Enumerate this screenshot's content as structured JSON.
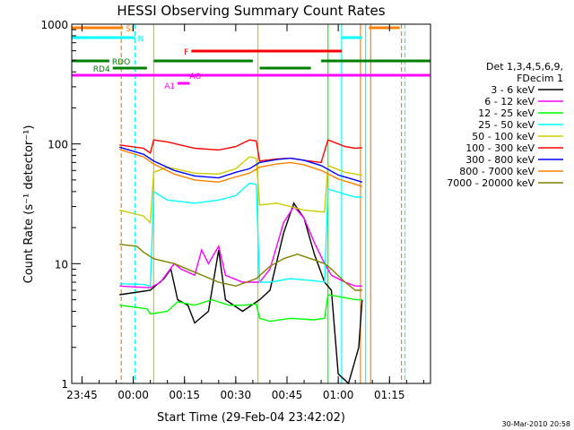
{
  "chart_data": {
    "type": "line",
    "title": "HESSI Observing Summary Count Rates",
    "xlabel": "Start Time (29-Feb-04 23:42:02)",
    "ylabel": "Count Rate (s⁻¹ detector⁻¹)",
    "ylog": true,
    "ylim": [
      1,
      1000
    ],
    "xlim_minutes": [
      -18,
      87
    ],
    "x_ticks": [
      {
        "t": -15,
        "label": "23:45"
      },
      {
        "t": 0,
        "label": "00:00"
      },
      {
        "t": 15,
        "label": "00:15"
      },
      {
        "t": 30,
        "label": "00:30"
      },
      {
        "t": 45,
        "label": "00:45"
      },
      {
        "t": 60,
        "label": "01:00"
      },
      {
        "t": 75,
        "label": "01:15"
      }
    ],
    "y_ticks": [
      {
        "v": 1,
        "label": "1"
      },
      {
        "v": 10,
        "label": "10"
      },
      {
        "v": 100,
        "label": "100"
      },
      {
        "v": 1000,
        "label": "1000"
      }
    ],
    "legend_header": [
      "Det 1,3,4,5,6,9,",
      "FDecim 1"
    ],
    "series": [
      {
        "name": "3 - 6 keV",
        "color": "#000000",
        "points": [
          [
            -4,
            5.5
          ],
          [
            5,
            6
          ],
          [
            9,
            7.5
          ],
          [
            11,
            9
          ],
          [
            13,
            5
          ],
          [
            16,
            4.5
          ],
          [
            18,
            3.2
          ],
          [
            22,
            4
          ],
          [
            25,
            13
          ],
          [
            27,
            5
          ],
          [
            32,
            4
          ],
          [
            37,
            5
          ],
          [
            40,
            6
          ],
          [
            44,
            18
          ],
          [
            47,
            32
          ],
          [
            50,
            24
          ],
          [
            53,
            12
          ],
          [
            56,
            7
          ],
          [
            58,
            6
          ],
          [
            60,
            1.2
          ],
          [
            63,
            1
          ],
          [
            66,
            2
          ],
          [
            67,
            5
          ]
        ]
      },
      {
        "name": "6 - 12 keV",
        "color": "#ff00ff",
        "points": [
          [
            -4,
            6.5
          ],
          [
            5,
            6.3
          ],
          [
            8,
            7
          ],
          [
            12,
            10
          ],
          [
            14,
            9
          ],
          [
            18,
            8
          ],
          [
            20,
            13
          ],
          [
            22,
            10
          ],
          [
            25,
            14
          ],
          [
            27,
            8
          ],
          [
            32,
            7
          ],
          [
            37,
            7
          ],
          [
            40,
            9
          ],
          [
            44,
            22
          ],
          [
            47,
            30
          ],
          [
            50,
            24
          ],
          [
            53,
            15
          ],
          [
            56,
            10
          ],
          [
            58,
            8
          ],
          [
            62,
            7
          ],
          [
            65,
            6.5
          ],
          [
            67,
            6.5
          ]
        ]
      },
      {
        "name": "12 - 25 keV",
        "color": "#00ff00",
        "points": [
          [
            -4,
            4.5
          ],
          [
            4,
            4.2
          ],
          [
            5,
            3.8
          ],
          [
            10,
            4
          ],
          [
            13,
            4.8
          ],
          [
            18,
            4.5
          ],
          [
            23,
            5
          ],
          [
            28,
            4.5
          ],
          [
            32,
            4.5
          ],
          [
            36,
            4.6
          ],
          [
            37,
            3.5
          ],
          [
            40,
            3.3
          ],
          [
            46,
            3.5
          ],
          [
            53,
            3.4
          ],
          [
            56,
            3.5
          ],
          [
            57,
            5.5
          ],
          [
            62,
            5.2
          ],
          [
            65,
            5
          ],
          [
            67,
            5
          ]
        ]
      },
      {
        "name": "25 - 50 keV",
        "color": "#00ffff",
        "points": [
          [
            -4,
            6.8
          ],
          [
            3,
            6.7
          ],
          [
            5,
            6.5
          ],
          [
            6,
            40
          ],
          [
            10,
            34
          ],
          [
            18,
            32
          ],
          [
            25,
            34
          ],
          [
            30,
            37
          ],
          [
            34,
            47
          ],
          [
            36,
            46
          ],
          [
            37,
            7
          ],
          [
            40,
            7
          ],
          [
            46,
            7.5
          ],
          [
            53,
            7.2
          ],
          [
            56,
            7
          ],
          [
            57,
            42
          ],
          [
            62,
            38
          ],
          [
            65,
            36
          ],
          [
            67,
            36
          ]
        ]
      },
      {
        "name": "50 - 100 keV",
        "color": "#cccc00",
        "points": [
          [
            -4,
            28
          ],
          [
            3,
            25
          ],
          [
            5,
            22
          ],
          [
            6,
            58
          ],
          [
            10,
            64
          ],
          [
            18,
            57
          ],
          [
            25,
            56
          ],
          [
            30,
            62
          ],
          [
            34,
            78
          ],
          [
            36,
            76
          ],
          [
            37,
            31
          ],
          [
            42,
            32
          ],
          [
            46,
            30
          ],
          [
            50,
            28
          ],
          [
            56,
            27
          ],
          [
            57,
            66
          ],
          [
            62,
            58
          ],
          [
            65,
            56
          ],
          [
            67,
            55
          ]
        ]
      },
      {
        "name": "100 - 300 keV",
        "color": "#ff0000",
        "points": [
          [
            -4,
            98
          ],
          [
            3,
            92
          ],
          [
            5,
            84
          ],
          [
            6,
            108
          ],
          [
            10,
            104
          ],
          [
            18,
            92
          ],
          [
            25,
            89
          ],
          [
            30,
            95
          ],
          [
            34,
            108
          ],
          [
            36,
            106
          ],
          [
            37,
            72
          ],
          [
            42,
            75
          ],
          [
            46,
            76
          ],
          [
            50,
            73
          ],
          [
            55,
            70
          ],
          [
            57,
            108
          ],
          [
            62,
            95
          ],
          [
            65,
            92
          ],
          [
            67,
            93
          ]
        ]
      },
      {
        "name": "300 - 800 keV",
        "color": "#0000ff",
        "points": [
          [
            -4,
            94
          ],
          [
            3,
            82
          ],
          [
            6,
            72
          ],
          [
            12,
            60
          ],
          [
            18,
            54
          ],
          [
            25,
            52
          ],
          [
            30,
            58
          ],
          [
            34,
            62
          ],
          [
            37,
            70
          ],
          [
            42,
            74
          ],
          [
            46,
            76
          ],
          [
            50,
            73
          ],
          [
            55,
            66
          ],
          [
            60,
            55
          ],
          [
            65,
            50
          ],
          [
            67,
            48
          ]
        ]
      },
      {
        "name": "800 - 7000 keV",
        "color": "#ff8000",
        "points": [
          [
            -4,
            90
          ],
          [
            3,
            78
          ],
          [
            6,
            68
          ],
          [
            12,
            56
          ],
          [
            18,
            50
          ],
          [
            25,
            48
          ],
          [
            30,
            53
          ],
          [
            34,
            57
          ],
          [
            37,
            64
          ],
          [
            42,
            68
          ],
          [
            46,
            70
          ],
          [
            50,
            67
          ],
          [
            55,
            60
          ],
          [
            60,
            51
          ],
          [
            65,
            46
          ],
          [
            67,
            44
          ]
        ]
      },
      {
        "name": "7000 - 20000 keV",
        "color": "#808000",
        "points": [
          [
            -4,
            14.5
          ],
          [
            1,
            14
          ],
          [
            3,
            12.5
          ],
          [
            6,
            11
          ],
          [
            12,
            10
          ],
          [
            18,
            8.5
          ],
          [
            25,
            7
          ],
          [
            30,
            6.5
          ],
          [
            36,
            7.5
          ],
          [
            40,
            9.5
          ],
          [
            44,
            11
          ],
          [
            48,
            12
          ],
          [
            52,
            11
          ],
          [
            56,
            10
          ],
          [
            58,
            9
          ],
          [
            62,
            7
          ],
          [
            65,
            6
          ],
          [
            67,
            6
          ]
        ]
      }
    ],
    "flag_bars": [
      {
        "label": "SI",
        "color": "#ff8000",
        "y": 4,
        "segments": [
          [
            -18,
            -3
          ],
          [
            69,
            78
          ]
        ]
      },
      {
        "label": "N",
        "color": "#00ffff",
        "y": 15,
        "segments": [
          [
            -18,
            0.5
          ],
          [
            61,
            67
          ]
        ]
      },
      {
        "label": "F",
        "color": "#ff0000",
        "y": 30,
        "segments": [
          [
            17,
            61
          ]
        ]
      },
      {
        "label": "RDO",
        "color": "#008000",
        "y": 41,
        "segments": [
          [
            -18,
            -7
          ],
          [
            6,
            35
          ],
          [
            55,
            87
          ]
        ]
      },
      {
        "label": "RD4",
        "color": "#008000",
        "y": 49,
        "segments": [
          [
            -6,
            4
          ],
          [
            37,
            52
          ]
        ]
      },
      {
        "label": "AO",
        "color": "#ff00ff",
        "y": 57,
        "segments": [
          [
            -18,
            87
          ]
        ]
      },
      {
        "label": "A1",
        "color": "#ff00ff",
        "y": 66,
        "segments": [
          [
            13,
            16.5
          ]
        ]
      }
    ],
    "vertical_markers": [
      {
        "t": -3.5,
        "color": "#ff8000",
        "dash": true
      },
      {
        "t": 0.5,
        "color": "#00ffff",
        "dash": true
      },
      {
        "t": 6,
        "color": "#cccc00",
        "dash": false
      },
      {
        "t": 36.5,
        "color": "#cccc00",
        "dash": false
      },
      {
        "t": 57,
        "color": "#00ff00",
        "dash": false
      },
      {
        "t": 61,
        "color": "#00ffff",
        "dash": false
      },
      {
        "t": 66.5,
        "color": "#ff8000",
        "dash": false
      },
      {
        "t": 68,
        "color": "#00ffff",
        "dash": false
      },
      {
        "t": 69.5,
        "color": "#ff8000",
        "dash": false
      },
      {
        "t": 78.5,
        "color": "#ff8000",
        "dash": true
      },
      {
        "t": 79.5,
        "color": "#00ffff",
        "dash": true
      }
    ]
  },
  "footer": {
    "timestamp": "30-Mar-2010 20:58"
  }
}
